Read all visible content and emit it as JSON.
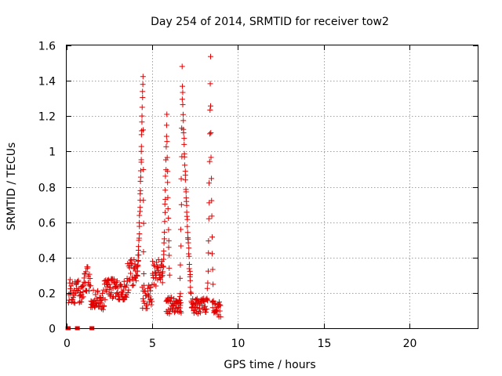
{
  "chart_data": {
    "type": "scatter",
    "title": "Day 254 of 2014, SRMTID for receiver tow2",
    "xlabel": "GPS time / hours",
    "ylabel": "SRMTID / TECUs",
    "xlim": [
      0,
      24
    ],
    "ylim": [
      0,
      1.6
    ],
    "xticks": [
      0,
      5,
      10,
      15,
      20
    ],
    "yticks": [
      0,
      0.2,
      0.4,
      0.6,
      0.8,
      1,
      1.2,
      1.4,
      1.6
    ],
    "xtick_labels": [
      "0",
      "5",
      "10",
      "15",
      "20"
    ],
    "ytick_labels": [
      "0",
      "0.2",
      "0.4",
      "0.6",
      "0.8",
      "1",
      "1.2",
      "1.4",
      "1.6"
    ],
    "grid": true,
    "marker": "plus",
    "color": "#e00000",
    "series": [
      {
        "name": "SRMTID",
        "zero_points": [
          0.05,
          0.12,
          0.6,
          0.65,
          1.45,
          1.5
        ],
        "segments": [
          {
            "x0": 0.1,
            "x1": 1.0,
            "n": 45,
            "base": 0.21,
            "amp": 0.07,
            "peak": 0
          },
          {
            "x0": 1.0,
            "x1": 1.4,
            "n": 20,
            "base": 0.28,
            "amp": 0.07,
            "peak": 0
          },
          {
            "x0": 1.4,
            "x1": 2.2,
            "n": 40,
            "base": 0.16,
            "amp": 0.06,
            "peak": 0
          },
          {
            "x0": 2.2,
            "x1": 3.5,
            "n": 65,
            "base": 0.22,
            "amp": 0.06,
            "peak": 0
          },
          {
            "x0": 3.5,
            "x1": 4.1,
            "n": 30,
            "base": 0.3,
            "amp": 0.1,
            "peak": 0
          },
          {
            "x0": 4.4,
            "x1": 5.0,
            "n": 30,
            "base": 0.18,
            "amp": 0.07,
            "peak": 0
          },
          {
            "x0": 5.0,
            "x1": 5.6,
            "n": 30,
            "base": 0.31,
            "amp": 0.08,
            "peak": 0
          },
          {
            "x0": 5.8,
            "x1": 6.7,
            "n": 45,
            "base": 0.13,
            "amp": 0.05,
            "peak": 0
          },
          {
            "x0": 7.3,
            "x1": 8.2,
            "n": 45,
            "base": 0.13,
            "amp": 0.05,
            "peak": 0
          },
          {
            "x0": 8.5,
            "x1": 9.0,
            "n": 25,
            "base": 0.11,
            "amp": 0.05,
            "peak": 0
          }
        ],
        "spikes": [
          {
            "x_start": 4.1,
            "x_peak": 4.45,
            "x_end": 4.5,
            "base": 0.3,
            "peak": 1.43,
            "n": 45
          },
          {
            "x_start": 5.6,
            "x_peak": 5.85,
            "x_end": 6.0,
            "base": 0.3,
            "peak": 1.21,
            "n": 35
          },
          {
            "x_start": 6.6,
            "x_peak": 6.75,
            "x_end": 7.3,
            "base": 0.12,
            "peak": 1.48,
            "n": 55
          },
          {
            "x_start": 8.2,
            "x_peak": 8.4,
            "x_end": 8.55,
            "base": 0.15,
            "peak": 1.53,
            "n": 25
          }
        ]
      }
    ]
  }
}
